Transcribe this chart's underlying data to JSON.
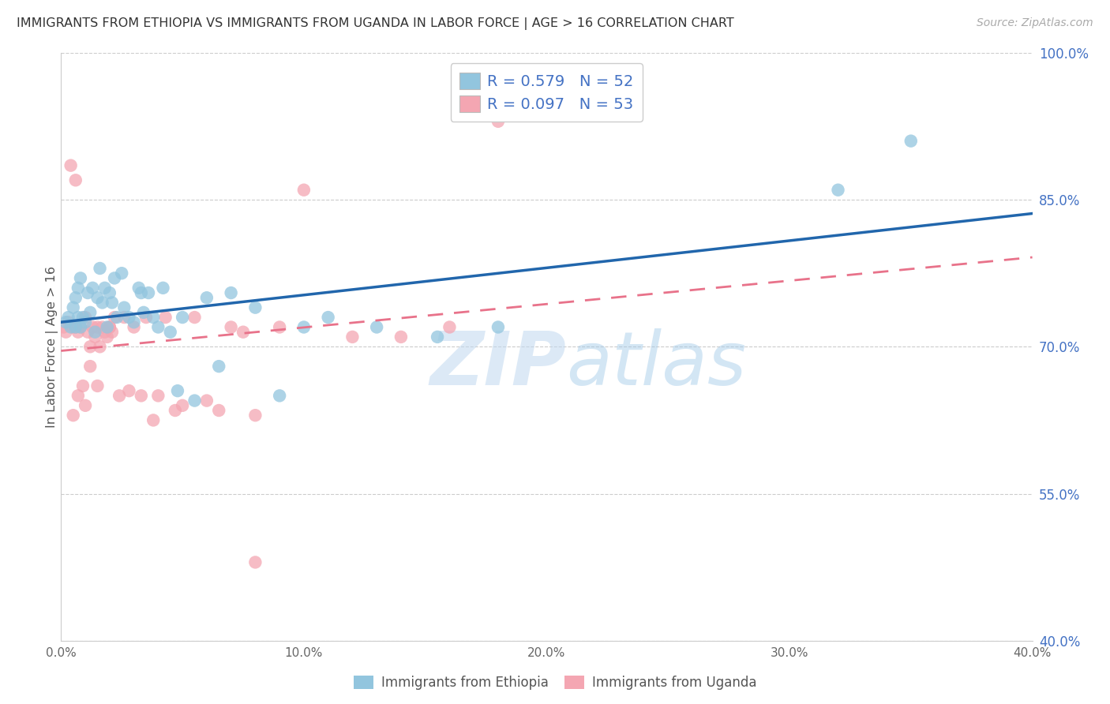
{
  "title": "IMMIGRANTS FROM ETHIOPIA VS IMMIGRANTS FROM UGANDA IN LABOR FORCE | AGE > 16 CORRELATION CHART",
  "source": "Source: ZipAtlas.com",
  "ylabel": "In Labor Force | Age > 16",
  "xlim": [
    0.0,
    0.4
  ],
  "ylim": [
    0.4,
    1.0
  ],
  "ytick_vals": [
    0.4,
    0.55,
    0.7,
    0.85,
    1.0
  ],
  "ytick_labels": [
    "40.0%",
    "55.0%",
    "70.0%",
    "85.0%",
    "100.0%"
  ],
  "xtick_vals": [
    0.0,
    0.1,
    0.2,
    0.3,
    0.4
  ],
  "xtick_labels": [
    "0.0%",
    "10.0%",
    "20.0%",
    "30.0%",
    "40.0%"
  ],
  "legend_R1": "R = 0.579",
  "legend_N1": "N = 52",
  "legend_R2": "R = 0.097",
  "legend_N2": "N = 53",
  "color_ethiopia": "#92c5de",
  "color_uganda": "#f4a6b2",
  "color_ethiopia_line": "#2166ac",
  "color_uganda_line": "#e8728a",
  "color_legend_text": "#4472c4",
  "color_title": "#333333",
  "color_source": "#aaaaaa",
  "color_ytick": "#4472c4",
  "color_xtick": "#666666",
  "color_grid": "#cccccc",
  "color_watermark": "#cce0f0",
  "watermark_zip": "ZIP",
  "watermark_atlas": "atlas",
  "background_color": "#ffffff",
  "ethiopia_x": [
    0.002,
    0.003,
    0.004,
    0.005,
    0.006,
    0.006,
    0.007,
    0.007,
    0.008,
    0.008,
    0.009,
    0.01,
    0.011,
    0.012,
    0.013,
    0.014,
    0.015,
    0.016,
    0.017,
    0.018,
    0.019,
    0.02,
    0.021,
    0.022,
    0.023,
    0.025,
    0.026,
    0.028,
    0.03,
    0.032,
    0.033,
    0.034,
    0.036,
    0.038,
    0.04,
    0.042,
    0.045,
    0.048,
    0.05,
    0.055,
    0.06,
    0.065,
    0.07,
    0.08,
    0.09,
    0.1,
    0.11,
    0.13,
    0.155,
    0.18,
    0.32,
    0.35
  ],
  "ethiopia_y": [
    0.725,
    0.73,
    0.72,
    0.74,
    0.75,
    0.72,
    0.76,
    0.73,
    0.77,
    0.72,
    0.73,
    0.725,
    0.755,
    0.735,
    0.76,
    0.715,
    0.75,
    0.78,
    0.745,
    0.76,
    0.72,
    0.755,
    0.745,
    0.77,
    0.73,
    0.775,
    0.74,
    0.73,
    0.725,
    0.76,
    0.755,
    0.735,
    0.755,
    0.73,
    0.72,
    0.76,
    0.715,
    0.655,
    0.73,
    0.645,
    0.75,
    0.68,
    0.755,
    0.74,
    0.65,
    0.72,
    0.73,
    0.72,
    0.71,
    0.72,
    0.86,
    0.91
  ],
  "uganda_x": [
    0.001,
    0.002,
    0.003,
    0.004,
    0.005,
    0.005,
    0.006,
    0.006,
    0.007,
    0.007,
    0.008,
    0.009,
    0.01,
    0.011,
    0.012,
    0.013,
    0.014,
    0.015,
    0.016,
    0.017,
    0.018,
    0.019,
    0.02,
    0.021,
    0.022,
    0.024,
    0.026,
    0.028,
    0.03,
    0.033,
    0.035,
    0.038,
    0.04,
    0.043,
    0.047,
    0.05,
    0.055,
    0.06,
    0.065,
    0.07,
    0.075,
    0.08,
    0.09,
    0.1,
    0.12,
    0.14,
    0.16,
    0.18,
    0.08,
    0.01,
    0.012,
    0.015,
    0.02
  ],
  "uganda_y": [
    0.72,
    0.715,
    0.725,
    0.885,
    0.63,
    0.72,
    0.87,
    0.72,
    0.65,
    0.715,
    0.72,
    0.66,
    0.73,
    0.715,
    0.7,
    0.72,
    0.71,
    0.72,
    0.7,
    0.72,
    0.715,
    0.71,
    0.72,
    0.715,
    0.73,
    0.65,
    0.73,
    0.655,
    0.72,
    0.65,
    0.73,
    0.625,
    0.65,
    0.73,
    0.635,
    0.64,
    0.73,
    0.645,
    0.635,
    0.72,
    0.715,
    0.63,
    0.72,
    0.86,
    0.71,
    0.71,
    0.72,
    0.93,
    0.48,
    0.64,
    0.68,
    0.66,
    0.72
  ]
}
